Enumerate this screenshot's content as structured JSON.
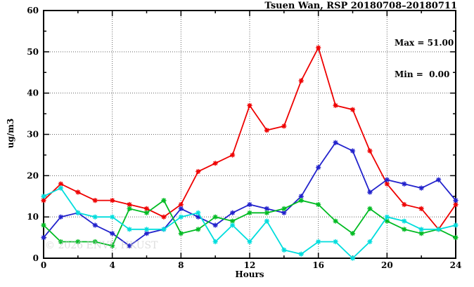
{
  "header": {
    "title": "Tsuen Wan, RSP 20180708–20180711"
  },
  "annotations": {
    "max_label": "Max = 51.00",
    "min_label": "Min =  0.00"
  },
  "watermark": "© 2026 ENVF, HKUST",
  "chart_data": {
    "type": "line",
    "title": "Tsuen Wan, RSP 20180708–20180711",
    "xlabel": "Hours",
    "ylabel": "ug/m3",
    "xlim": [
      0,
      24
    ],
    "ylim": [
      0,
      60
    ],
    "grid": true,
    "legend": "none",
    "x_major_ticks": [
      0,
      4,
      8,
      12,
      16,
      20,
      24
    ],
    "x_minor_step": 2,
    "y_major_ticks": [
      0,
      10,
      20,
      30,
      40,
      50,
      60
    ],
    "y_minor_step": 5,
    "x": [
      0,
      1,
      2,
      3,
      4,
      5,
      6,
      7,
      8,
      9,
      10,
      11,
      12,
      13,
      14,
      15,
      16,
      17,
      18,
      19,
      20,
      21,
      22,
      23,
      24
    ],
    "series": [
      {
        "name": "red",
        "color": "#ee0000",
        "values": [
          14,
          18,
          16,
          14,
          14,
          13,
          12,
          10,
          13,
          21,
          23,
          25,
          37,
          31,
          32,
          43,
          51,
          37,
          36,
          26,
          18,
          13,
          12,
          7,
          13
        ]
      },
      {
        "name": "blue",
        "color": "#2222cc",
        "values": [
          5,
          10,
          11,
          8,
          6,
          3,
          6,
          7,
          12,
          10,
          8,
          11,
          13,
          12,
          11,
          15,
          22,
          28,
          26,
          16,
          19,
          18,
          17,
          19,
          14
        ]
      },
      {
        "name": "green",
        "color": "#00bb22",
        "values": [
          8,
          4,
          4,
          4,
          3,
          12,
          11,
          14,
          6,
          7,
          10,
          9,
          11,
          11,
          12,
          14,
          13,
          9,
          6,
          12,
          9,
          7,
          6,
          7,
          5
        ]
      },
      {
        "name": "cyan",
        "color": "#00dddd",
        "values": [
          15,
          17,
          11,
          10,
          10,
          7,
          7,
          7,
          10,
          11,
          4,
          8,
          4,
          9,
          2,
          1,
          4,
          4,
          0,
          4,
          10,
          9,
          7,
          7,
          8
        ]
      }
    ],
    "stats": {
      "max": 51.0,
      "min": 0.0
    }
  }
}
